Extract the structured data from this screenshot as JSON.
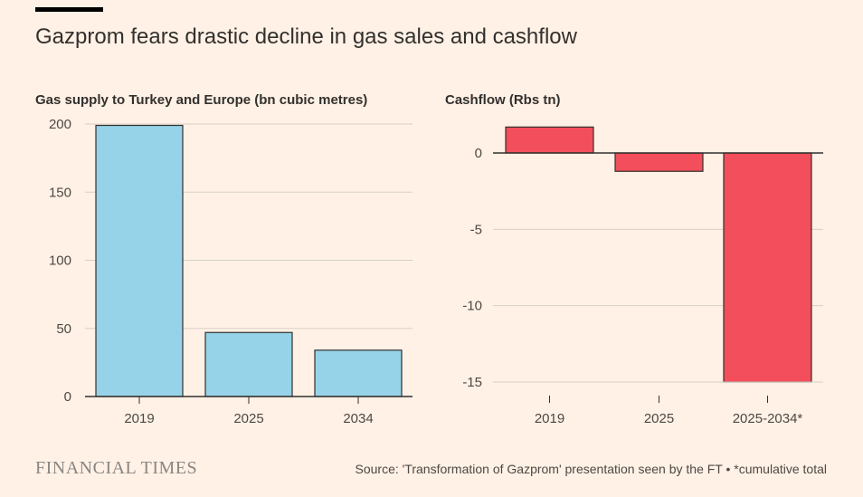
{
  "headline": "Gazprom fears drastic decline in gas sales and cashflow",
  "logo_text": "FINANCIAL TIMES",
  "source": "Source: 'Transformation of Gazprom' presentation seen by the FT • *cumulative total",
  "colors": {
    "background": "#fff1e5",
    "gas_bar": "#96d3e8",
    "cash_bar": "#f24e5b",
    "grid": "#d8cfc6",
    "axis": "#33302e"
  },
  "chart_data": [
    {
      "type": "bar",
      "title": "Gas supply to Turkey and Europe (bn cubic metres)",
      "categories": [
        "2019",
        "2025",
        "2034"
      ],
      "values": [
        199,
        47,
        34
      ],
      "ylim": [
        0,
        200
      ],
      "yticks": [
        0,
        50,
        100,
        150,
        200
      ],
      "grid": true
    },
    {
      "type": "bar",
      "title": "Cashflow (Rbs tn)",
      "categories": [
        "2019",
        "2025",
        "2025-2034*"
      ],
      "values": [
        1.7,
        -1.2,
        -15
      ],
      "ylim": [
        -15,
        2
      ],
      "yticks": [
        0,
        -5,
        -10,
        -15
      ],
      "grid": true
    }
  ]
}
